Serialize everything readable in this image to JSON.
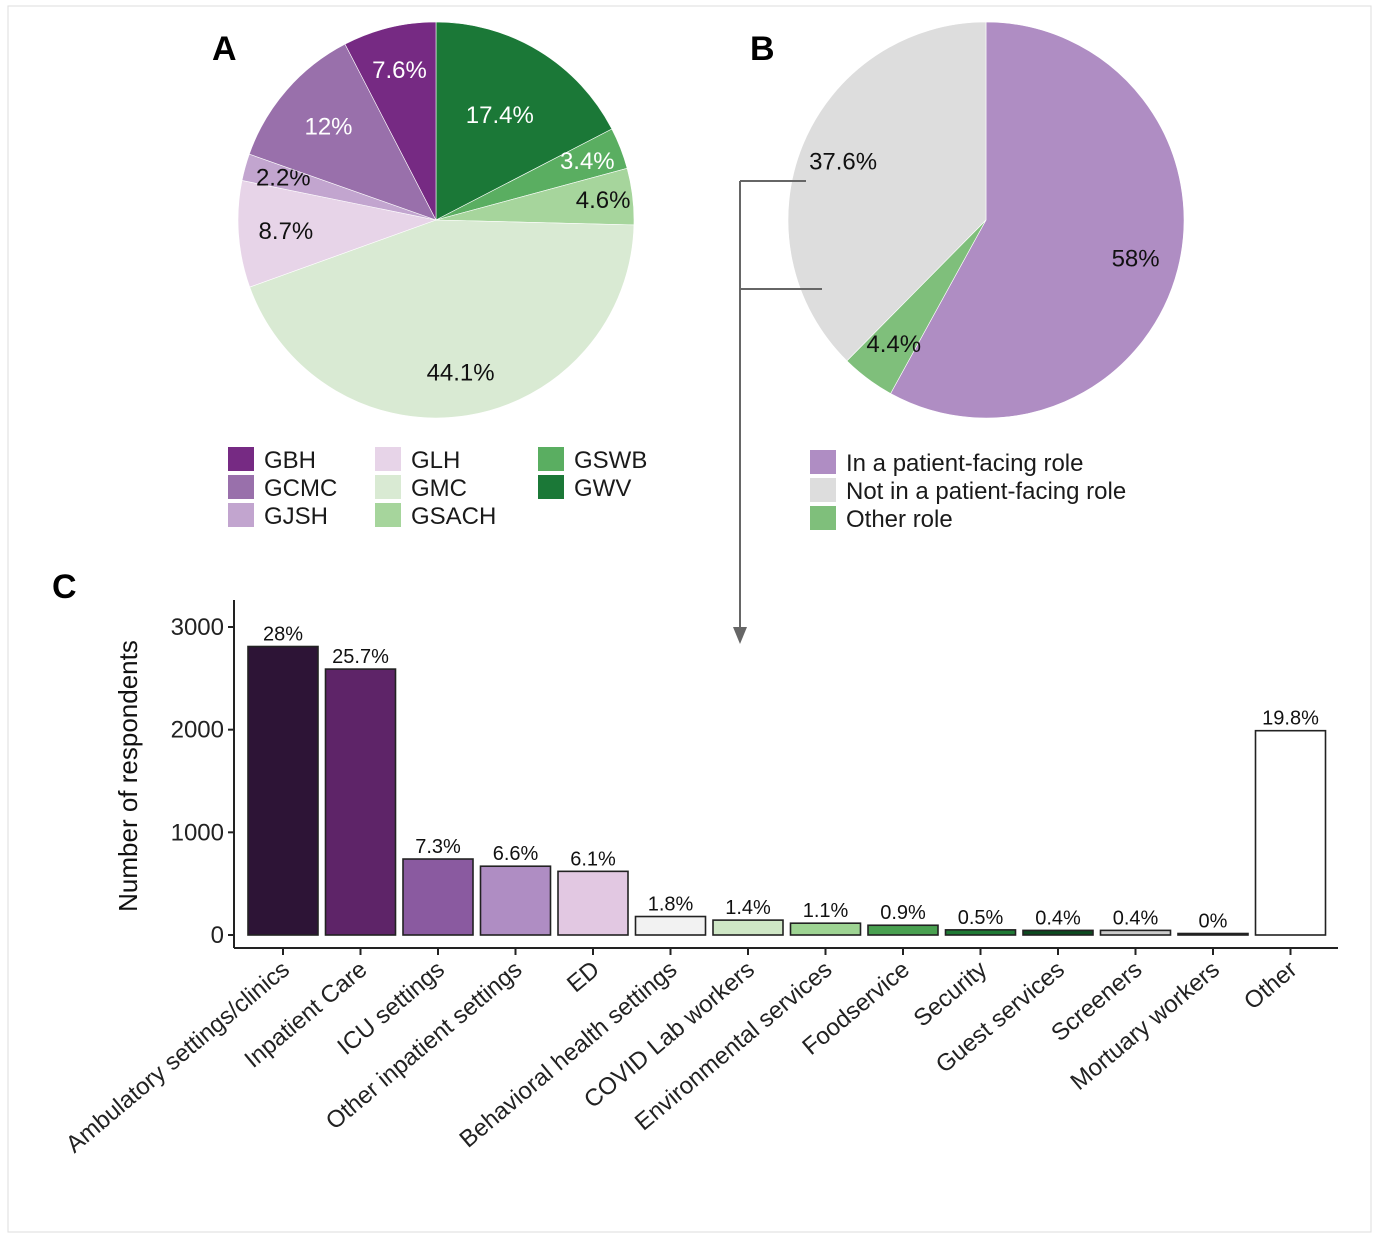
{
  "chart_data": [
    {
      "panel": "A",
      "type": "pie",
      "slices": [
        {
          "name": "GBH",
          "value": 7.6,
          "label": "7.6%",
          "color": "#762a83"
        },
        {
          "name": "GCMC",
          "value": 12.0,
          "label": "12%",
          "color": "#9970ab"
        },
        {
          "name": "GJSH",
          "value": 2.2,
          "label": "2.2%",
          "color": "#c2a5cf"
        },
        {
          "name": "GLH",
          "value": 8.7,
          "label": "8.7%",
          "color": "#e7d4e8"
        },
        {
          "name": "GMC",
          "value": 44.1,
          "label": "44.1%",
          "color": "#d9ead3"
        },
        {
          "name": "GSACH",
          "value": 4.6,
          "label": "4.6%",
          "color": "#a6d59c"
        },
        {
          "name": "GSWB",
          "value": 3.4,
          "label": "3.4%",
          "color": "#5aae61"
        },
        {
          "name": "GWV",
          "value": 17.4,
          "label": "17.4%",
          "color": "#1b7837"
        }
      ],
      "legend_order": [
        "GBH",
        "GCMC",
        "GJSH",
        "GLH",
        "GMC",
        "GSACH",
        "GSWB",
        "GWV"
      ]
    },
    {
      "panel": "B",
      "type": "pie",
      "slices": [
        {
          "name": "In a patient-facing role",
          "value": 58.0,
          "label": "58%",
          "color": "#af8dc3"
        },
        {
          "name": "Other role",
          "value": 4.4,
          "label": "4.4%",
          "color": "#7fbf7b"
        },
        {
          "name": "Not in a patient-facing role",
          "value": 37.6,
          "label": "37.6%",
          "color": "#dddddd"
        }
      ],
      "legend_order": [
        "In a patient-facing role",
        "Not in a patient-facing role",
        "Other role"
      ]
    },
    {
      "panel": "C",
      "type": "bar",
      "ylabel": "Number of respondents",
      "ylim": [
        0,
        3300
      ],
      "yticks": [
        0,
        1000,
        2000,
        3000
      ],
      "categories": [
        "Ambulatory settings/clinics",
        "Inpatient Care",
        "ICU settings",
        "Other inpatient settings",
        "ED",
        "Behavioral health settings",
        "COVID Lab workers",
        "Environmental services",
        "Foodservice",
        "Security",
        "Guest services",
        "Screeners",
        "Mortuary workers",
        "Other"
      ],
      "values": [
        2810,
        2590,
        740,
        670,
        620,
        180,
        145,
        115,
        95,
        50,
        45,
        45,
        5,
        1990
      ],
      "labels": [
        "28%",
        "25.7%",
        "7.3%",
        "6.6%",
        "6.1%",
        "1.8%",
        "1.4%",
        "1.1%",
        "0.9%",
        "0.5%",
        "0.4%",
        "0.4%",
        "0%",
        "19.8%"
      ],
      "colors": [
        "#2d1436",
        "#5e2468",
        "#8a5aa0",
        "#af8dc3",
        "#e2c8e2",
        "#f2f2f2",
        "#cfe7c6",
        "#9ed493",
        "#49a050",
        "#1f7a35",
        "#0d4a20",
        "#cccccc",
        "#ffffff",
        "#ffffff"
      ]
    }
  ]
}
